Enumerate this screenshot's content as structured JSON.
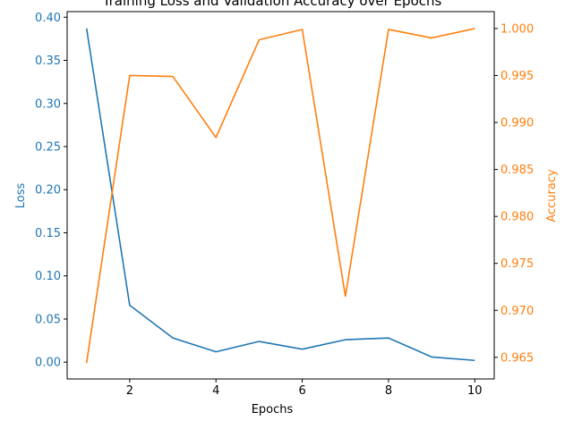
{
  "chart_data": {
    "type": "line",
    "title": "Training Loss and Validation Accuracy over Epochs",
    "xlabel": "Epochs",
    "ylabel_left": "Loss",
    "ylabel_right": "Accuracy",
    "x": [
      1,
      2,
      3,
      4,
      5,
      6,
      7,
      8,
      9,
      10
    ],
    "xlim": [
      0.55,
      10.45
    ],
    "xticks": [
      2,
      4,
      6,
      8,
      10
    ],
    "left_axis": {
      "ylim": [
        -0.0195,
        0.4065
      ],
      "ticks": [
        0.0,
        0.05,
        0.1,
        0.15,
        0.2,
        0.25,
        0.3,
        0.35,
        0.4
      ],
      "tick_labels": [
        "0.00",
        "0.05",
        "0.10",
        "0.15",
        "0.20",
        "0.25",
        "0.30",
        "0.35",
        "0.40"
      ],
      "color": "#1f77b4"
    },
    "right_axis": {
      "ylim": [
        0.9627,
        1.0018
      ],
      "ticks": [
        0.965,
        0.97,
        0.975,
        0.98,
        0.985,
        0.99,
        0.995,
        1.0
      ],
      "tick_labels": [
        "0.965",
        "0.970",
        "0.975",
        "0.980",
        "0.985",
        "0.990",
        "0.995",
        "1.000"
      ],
      "color": "#ff7f0e"
    },
    "series": [
      {
        "axis": "left",
        "color": "#1f77b4",
        "values": [
          0.387,
          0.066,
          0.028,
          0.012,
          0.024,
          0.015,
          0.026,
          0.028,
          0.006,
          0.002
        ]
      },
      {
        "axis": "right",
        "color": "#ff7f0e",
        "values": [
          0.9644,
          0.995,
          0.9949,
          0.9884,
          0.9988,
          0.9999,
          0.9715,
          0.9999,
          0.999,
          1.0
        ]
      }
    ],
    "grid": false,
    "legend": "none"
  }
}
